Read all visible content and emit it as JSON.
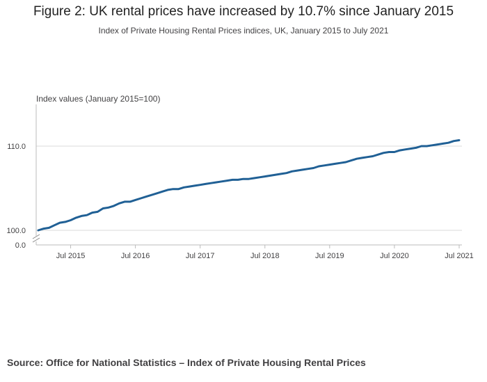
{
  "title": "Figure 2: UK rental prices have increased by 10.7% since January 2015",
  "subtitle": "Index of Private Housing Rental Prices indices, UK, January 2015 to July 2021",
  "source": "Source: Office for National Statistics – Index of Private Housing Rental Prices",
  "colors": {
    "line": "#206095",
    "axis": "#bbbbbb",
    "grid": "#d9d9d9"
  },
  "chart_data": {
    "type": "line",
    "title": "Figure 2: UK rental prices have increased by 10.7% since January 2015",
    "subtitle": "Index of Private Housing Rental Prices indices, UK, January 2015 to July 2021",
    "ylabel": "Index values (January 2015=100)",
    "xlabel": "",
    "y_ticks": [
      {
        "value": 100,
        "label": "100.0"
      },
      {
        "value": 110,
        "label": "110.0"
      }
    ],
    "y_break_label": "0.0",
    "ylim": [
      98.2,
      115
    ],
    "x_ticks": [
      {
        "date": "2015-07",
        "label": "Jul 2015"
      },
      {
        "date": "2016-07",
        "label": "Jul 2016"
      },
      {
        "date": "2017-07",
        "label": "Jul 2017"
      },
      {
        "date": "2018-07",
        "label": "Jul 2018"
      },
      {
        "date": "2019-07",
        "label": "Jul 2019"
      },
      {
        "date": "2020-07",
        "label": "Jul 2020"
      },
      {
        "date": "2021-07",
        "label": "Jul 2021"
      }
    ],
    "grid": true,
    "legend": "none",
    "series": [
      {
        "x": [
          "2015-01",
          "2015-02",
          "2015-03",
          "2015-04",
          "2015-05",
          "2015-06",
          "2015-07",
          "2015-08",
          "2015-09",
          "2015-10",
          "2015-11",
          "2015-12",
          "2016-01",
          "2016-02",
          "2016-03",
          "2016-04",
          "2016-05",
          "2016-06",
          "2016-07",
          "2016-08",
          "2016-09",
          "2016-10",
          "2016-11",
          "2016-12",
          "2017-01",
          "2017-02",
          "2017-03",
          "2017-04",
          "2017-05",
          "2017-06",
          "2017-07",
          "2017-08",
          "2017-09",
          "2017-10",
          "2017-11",
          "2017-12",
          "2018-01",
          "2018-02",
          "2018-03",
          "2018-04",
          "2018-05",
          "2018-06",
          "2018-07",
          "2018-08",
          "2018-09",
          "2018-10",
          "2018-11",
          "2018-12",
          "2019-01",
          "2019-02",
          "2019-03",
          "2019-04",
          "2019-05",
          "2019-06",
          "2019-07",
          "2019-08",
          "2019-09",
          "2019-10",
          "2019-11",
          "2019-12",
          "2020-01",
          "2020-02",
          "2020-03",
          "2020-04",
          "2020-05",
          "2020-06",
          "2020-07",
          "2020-08",
          "2020-09",
          "2020-10",
          "2020-11",
          "2020-12",
          "2021-01",
          "2021-02",
          "2021-03",
          "2021-04",
          "2021-05",
          "2021-06",
          "2021-07"
        ],
        "values": [
          100.0,
          100.2,
          100.3,
          100.6,
          100.9,
          101.0,
          101.2,
          101.5,
          101.7,
          101.8,
          102.1,
          102.2,
          102.6,
          102.7,
          102.9,
          103.2,
          103.4,
          103.4,
          103.6,
          103.8,
          104.0,
          104.2,
          104.4,
          104.6,
          104.8,
          104.9,
          104.9,
          105.1,
          105.2,
          105.3,
          105.4,
          105.5,
          105.6,
          105.7,
          105.8,
          105.9,
          106.0,
          106.0,
          106.1,
          106.1,
          106.2,
          106.3,
          106.4,
          106.5,
          106.6,
          106.7,
          106.8,
          107.0,
          107.1,
          107.2,
          107.3,
          107.4,
          107.6,
          107.7,
          107.8,
          107.9,
          108.0,
          108.1,
          108.3,
          108.5,
          108.6,
          108.7,
          108.8,
          109.0,
          109.2,
          109.3,
          109.3,
          109.5,
          109.6,
          109.7,
          109.8,
          110.0,
          110.0,
          110.1,
          110.2,
          110.3,
          110.4,
          110.6,
          110.7
        ]
      }
    ]
  }
}
